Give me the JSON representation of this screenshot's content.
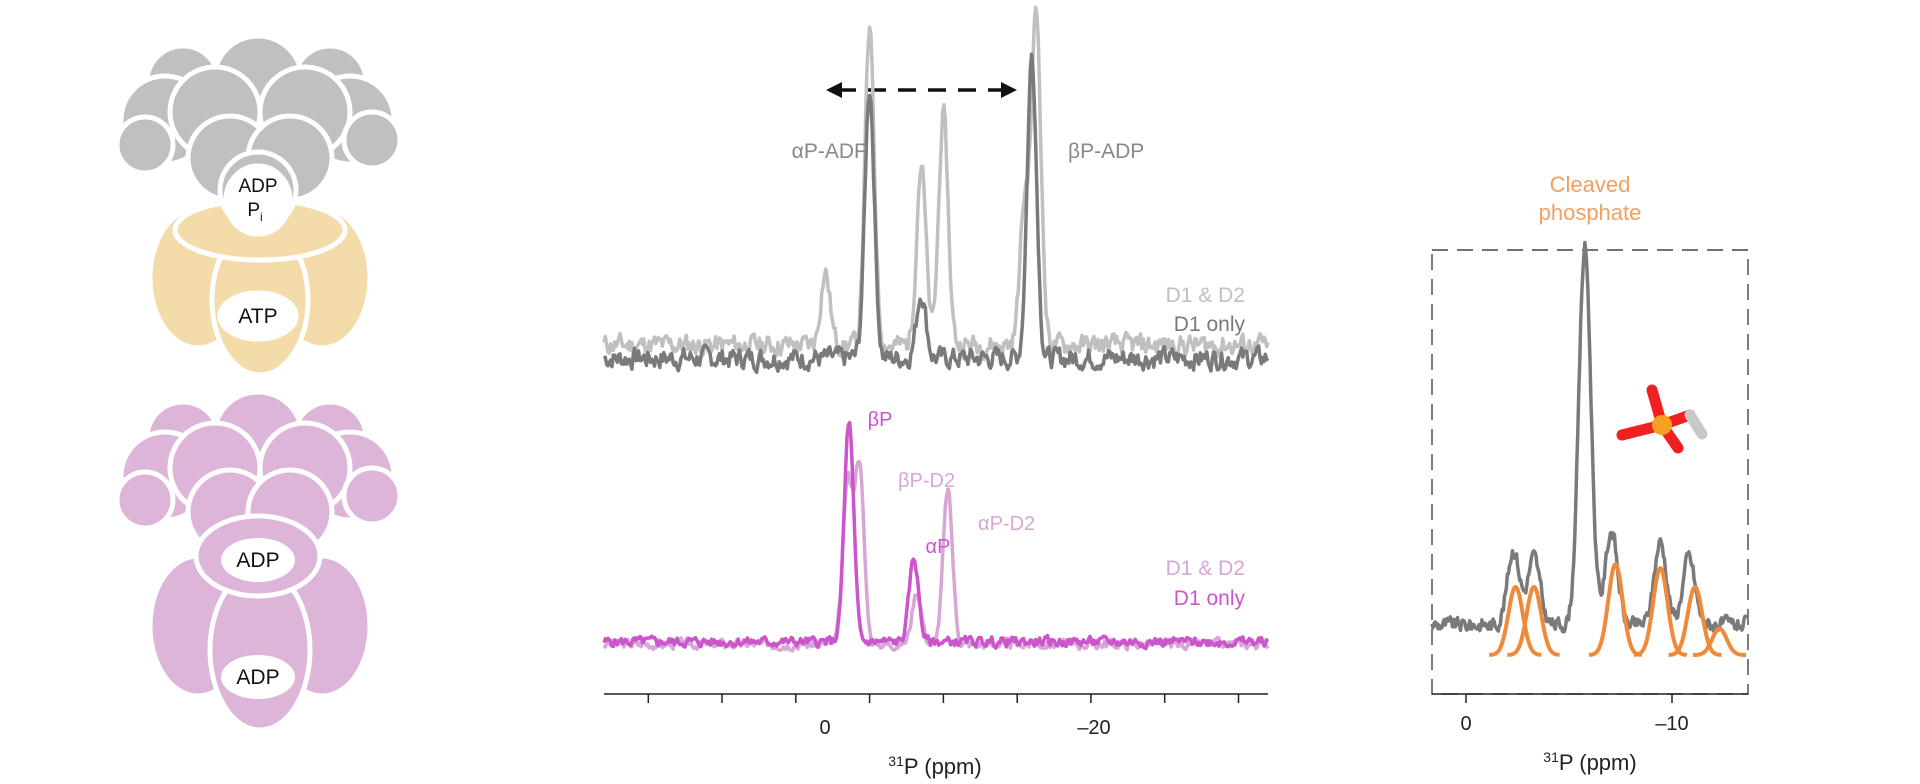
{
  "colors": {
    "gray_light": "#c0c0c0",
    "gray_dark": "#7a7a7a",
    "beige": "#f3dcaa",
    "pink_shape": "#dcb5d8",
    "magenta": "#cc55cc",
    "magenta_light": "#d7a6d6",
    "orange": "#ef8a3a",
    "orange_text": "#f2a062",
    "label_gray": "#888888"
  },
  "schematic": {
    "top": {
      "label_adp": "ADP",
      "label_pi": "P",
      "label_pi_sub": "i",
      "label_atp": "ATP"
    },
    "bottom": {
      "label_adp_upper": "ADP",
      "label_adp_lower": "ADP"
    }
  },
  "middle_chart": {
    "upper_peak_labels": {
      "alpha": "αP-ADP",
      "beta": "βP-ADP"
    },
    "upper_legend": [
      "D1 & D2",
      "D1 only"
    ],
    "lower_peak_labels": {
      "beta": "βP",
      "beta_d2": "βP-D2",
      "alpha": "αP",
      "alpha_d2": "αP-D2"
    },
    "lower_legend": [
      "D1 & D2",
      "D1 only"
    ],
    "x_tick_labels": [
      "0",
      "–20"
    ],
    "x_label_sup": "31",
    "x_label": "P (ppm)"
  },
  "right_chart": {
    "title_line1": "Cleaved",
    "title_line2": "phosphate",
    "x_tick_labels": [
      "0",
      "–10"
    ],
    "x_label_sup": "31",
    "x_label": "P (ppm)"
  },
  "chart_data": [
    {
      "type": "line",
      "xlabel": "31P (ppm)",
      "xlim": [
        13,
        -32
      ],
      "x_ticks": [
        0,
        -20
      ],
      "series": [
        {
          "name": "D1 & D2",
          "panel": "upper",
          "color": "#c0c0c0",
          "peaks": [
            {
              "x": -2,
              "y": 0.22
            },
            {
              "x": -5,
              "y": 0.95
            },
            {
              "x": -8.5,
              "y": 0.55
            },
            {
              "x": -10,
              "y": 0.7
            },
            {
              "x": -15.5,
              "y": 0.42
            },
            {
              "x": -16.3,
              "y": 1.0
            }
          ],
          "baseline": 0.1,
          "noise": 0.05,
          "seed": 11
        },
        {
          "name": "D1 only",
          "panel": "upper",
          "color": "#7a7a7a",
          "peaks": [
            {
              "x": -5,
              "y": 0.82
            },
            {
              "x": -8.5,
              "y": 0.2
            },
            {
              "x": -16,
              "y": 0.92
            }
          ],
          "baseline": 0.06,
          "noise": 0.05,
          "seed": 7
        },
        {
          "name": "D1 & D2",
          "panel": "lower",
          "color": "#d7a6d6",
          "peaks": [
            {
              "x": -3.5,
              "y": 0.72
            },
            {
              "x": -4.3,
              "y": 0.82
            },
            {
              "x": -8.2,
              "y": 0.24
            },
            {
              "x": -10.3,
              "y": 0.7
            }
          ],
          "baseline": 0.05,
          "noise": 0.035,
          "seed": 3
        },
        {
          "name": "D1 only",
          "panel": "lower",
          "color": "#cc55cc",
          "peaks": [
            {
              "x": -3.6,
              "y": 1.0
            },
            {
              "x": -8.0,
              "y": 0.38
            }
          ],
          "baseline": 0.06,
          "noise": 0.035,
          "seed": 5
        }
      ]
    },
    {
      "type": "line",
      "xlabel": "31P (ppm)",
      "xlim": [
        2,
        -13.5
      ],
      "x_ticks": [
        0,
        -10
      ],
      "series": [
        {
          "name": "",
          "color": "#7a7a7a",
          "peaks": [
            {
              "x": -2.0,
              "y": 0.2
            },
            {
              "x": -3.0,
              "y": 0.18
            },
            {
              "x": -5.5,
              "y": 1.0
            },
            {
              "x": -6.8,
              "y": 0.25
            },
            {
              "x": -9.2,
              "y": 0.22
            },
            {
              "x": -10.6,
              "y": 0.18
            }
          ],
          "baseline": 0.08,
          "noise": 0.03,
          "seed": 9
        },
        {
          "name": "",
          "color": "#ef8a3a",
          "type": "fit",
          "components": [
            {
              "x": -2.1,
              "y": 0.18
            },
            {
              "x": -3.0,
              "y": 0.18
            },
            {
              "x": -7.0,
              "y": 0.24
            },
            {
              "x": -9.2,
              "y": 0.23
            },
            {
              "x": -10.9,
              "y": 0.18
            },
            {
              "x": -12.1,
              "y": 0.07
            }
          ]
        }
      ]
    }
  ]
}
